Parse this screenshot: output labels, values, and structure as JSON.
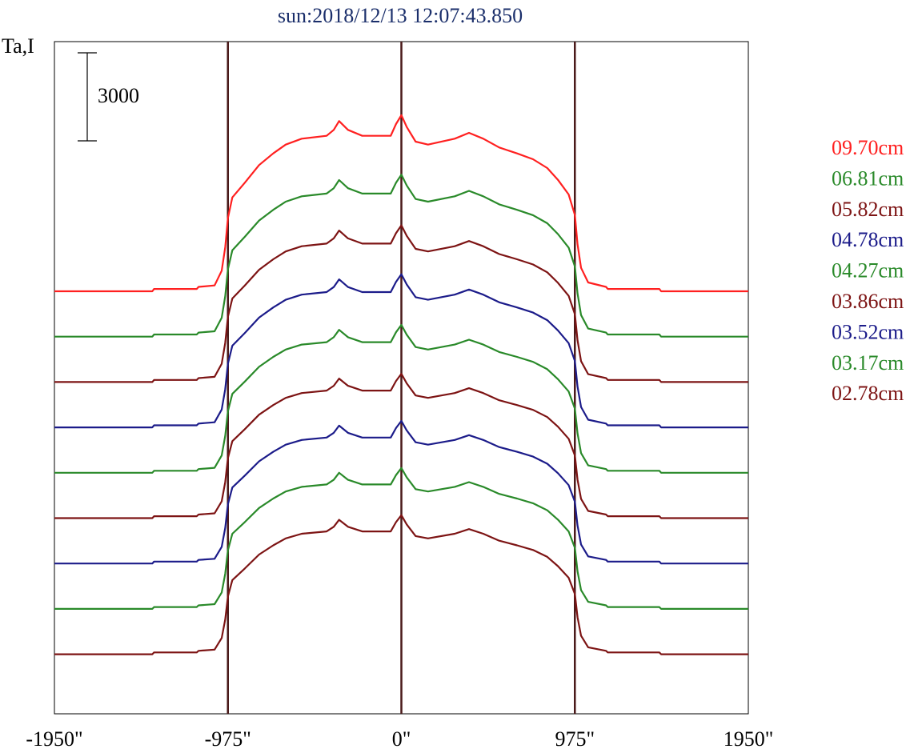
{
  "chart_data": {
    "type": "line",
    "title": "sun:2018/12/13 12:07:43.850",
    "ylabel": "Ta,I",
    "xlabel": "",
    "x_ticks": [
      "-1950\"",
      "-975\"",
      "0\"",
      "975\"",
      "1950\""
    ],
    "xlim": [
      -1950,
      1950
    ],
    "scale_bar": {
      "label": "3000",
      "value": 3000
    },
    "vertical_lines": [
      -975,
      0,
      975
    ],
    "vertical_line_color": "#4a1a1a",
    "grid": false,
    "legend_position": "right",
    "note": "Stacked one-dimensional solar brightness scans; each series is offset vertically, baseline level set to 0.",
    "profile_points": [
      [
        -1950,
        0
      ],
      [
        -1400,
        0
      ],
      [
        -1390,
        80
      ],
      [
        -1150,
        80
      ],
      [
        -1140,
        150
      ],
      [
        -1050,
        200
      ],
      [
        -1010,
        700
      ],
      [
        -990,
        1500
      ],
      [
        -975,
        2500
      ],
      [
        -950,
        3200
      ],
      [
        -880,
        3700
      ],
      [
        -800,
        4300
      ],
      [
        -720,
        4700
      ],
      [
        -650,
        5000
      ],
      [
        -560,
        5200
      ],
      [
        -420,
        5300
      ],
      [
        -380,
        5500
      ],
      [
        -350,
        5800
      ],
      [
        -300,
        5500
      ],
      [
        -220,
        5300
      ],
      [
        -60,
        5300
      ],
      [
        -30,
        5700
      ],
      [
        0,
        6000
      ],
      [
        30,
        5600
      ],
      [
        80,
        5100
      ],
      [
        150,
        5000
      ],
      [
        300,
        5200
      ],
      [
        380,
        5400
      ],
      [
        460,
        5200
      ],
      [
        550,
        4900
      ],
      [
        650,
        4700
      ],
      [
        740,
        4500
      ],
      [
        820,
        4200
      ],
      [
        880,
        3800
      ],
      [
        940,
        3300
      ],
      [
        975,
        2600
      ],
      [
        990,
        1600
      ],
      [
        1010,
        800
      ],
      [
        1050,
        300
      ],
      [
        1150,
        150
      ],
      [
        1160,
        80
      ],
      [
        1450,
        80
      ],
      [
        1460,
        0
      ],
      [
        1950,
        0
      ]
    ],
    "series": [
      {
        "name": "09.70cm",
        "color": "#ff2020",
        "peak_scale": 1.0
      },
      {
        "name": "06.81cm",
        "color": "#2a8a2a",
        "peak_scale": 0.92
      },
      {
        "name": "05.82cm",
        "color": "#7d1414",
        "peak_scale": 0.89
      },
      {
        "name": "04.78cm",
        "color": "#1c1c8a",
        "peak_scale": 0.87
      },
      {
        "name": "04.27cm",
        "color": "#2a8a2a",
        "peak_scale": 0.84
      },
      {
        "name": "03.86cm",
        "color": "#7d1414",
        "peak_scale": 0.82
      },
      {
        "name": "03.52cm",
        "color": "#1c1c8a",
        "peak_scale": 0.81
      },
      {
        "name": "03.17cm",
        "color": "#2a8a2a",
        "peak_scale": 0.8
      },
      {
        "name": "02.78cm",
        "color": "#7d1414",
        "peak_scale": 0.79
      }
    ]
  }
}
